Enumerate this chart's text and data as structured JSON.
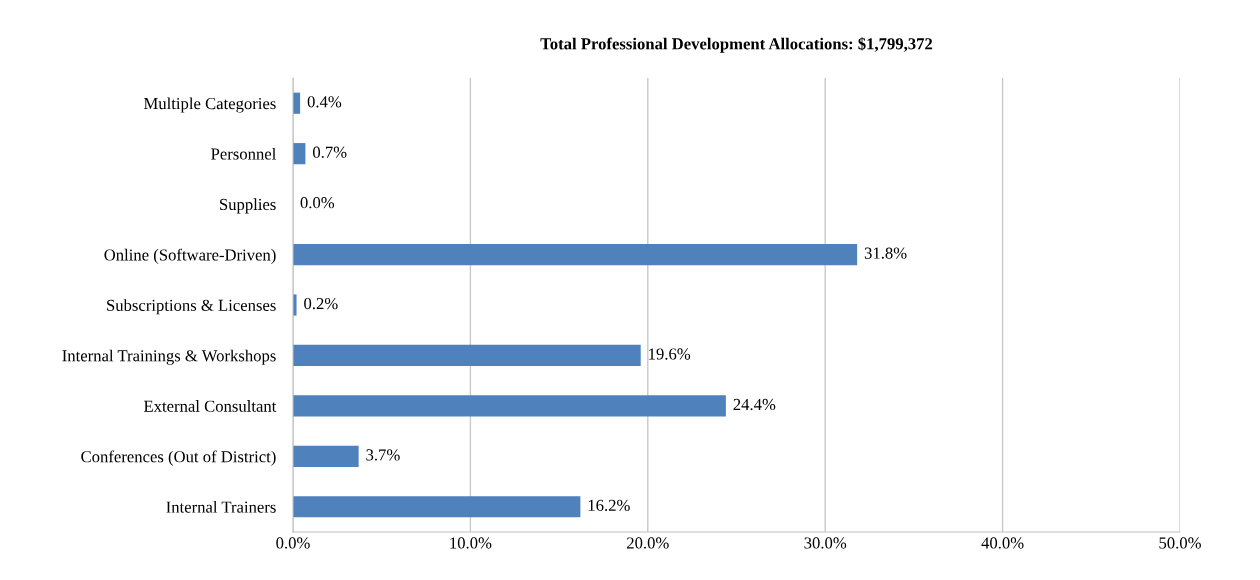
{
  "chart_data": {
    "type": "bar",
    "orientation": "horizontal",
    "title": "Total Professional Development Allocations: $1,799,372",
    "categories": [
      "Multiple Categories",
      "Personnel",
      "Supplies",
      "Online (Software-Driven)",
      "Subscriptions & Licenses",
      "Internal Trainings & Workshops",
      "External Consultant",
      "Conferences (Out of District)",
      "Internal Trainers"
    ],
    "values": [
      0.4,
      0.7,
      0.0,
      31.8,
      0.2,
      19.6,
      24.4,
      3.7,
      16.2
    ],
    "value_labels": [
      "0.4%",
      "0.7%",
      "0.0%",
      "31.8%",
      "0.2%",
      "19.6%",
      "24.4%",
      "3.7%",
      "16.2%"
    ],
    "color": "#4f81bd",
    "xlim": [
      0,
      50
    ],
    "xticks": [
      {
        "value": 0,
        "label": "0.0%"
      },
      {
        "value": 10,
        "label": "10.0%"
      },
      {
        "value": 20,
        "label": "20.0%"
      },
      {
        "value": 30,
        "label": "30.0%"
      },
      {
        "value": 40,
        "label": "40.0%"
      },
      {
        "value": 50,
        "label": "50.0%"
      }
    ],
    "grid": "x",
    "legend": false
  }
}
